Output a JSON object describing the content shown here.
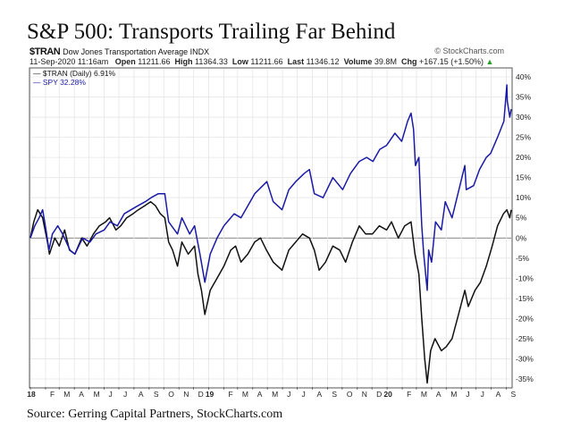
{
  "title": "S&P 500: Transports Trailing Far Behind",
  "source": "Source: Gerring Capital Partners, StockCharts.com",
  "watermark": "© StockCharts.com",
  "header": {
    "symbol": "$TRAN",
    "name": "Dow Jones Transportation Average INDX",
    "datetime": "11-Sep-2020 11:16am",
    "open_label": "Open",
    "open": "11211.66",
    "high_label": "High",
    "high": "11364.33",
    "low_label": "Low",
    "low": "11211.66",
    "last_label": "Last",
    "last": "11346.12",
    "volume_label": "Volume",
    "volume": "39.8M",
    "chg_label": "Chg",
    "chg": "+167.15 (+1.50%)"
  },
  "legend": [
    {
      "text": "— $TRAN (Daily) 6.91%",
      "color": "#111111"
    },
    {
      "text": "— SPY 32.28%",
      "color": "#1a1aa6"
    }
  ],
  "colors": {
    "tran": "#111111",
    "spy": "#1a1aa6",
    "grid": "#e6e6e6",
    "zero": "#777777",
    "up_arrow": "#2a9d2a"
  },
  "chart_data": {
    "type": "line",
    "title": "S&P 500: Transports Trailing Far Behind",
    "x_range": [
      "2018-01-01",
      "2020-09-11"
    ],
    "ylim": [
      -37,
      42
    ],
    "y_ticks": [
      40,
      35,
      30,
      25,
      20,
      15,
      10,
      5,
      0,
      -5,
      -10,
      -15,
      -20,
      -25,
      -30,
      -35
    ],
    "y_tick_labels": [
      "40%",
      "35%",
      "30%",
      "25%",
      "20%",
      "15%",
      "10%",
      "5%",
      "0%",
      "-5%",
      "-10%",
      "-15%",
      "-20%",
      "-25%",
      "-30%",
      "-35%"
    ],
    "x_ticks": [
      {
        "label": "18",
        "date": "2018-01-01",
        "major": true
      },
      {
        "label": "F",
        "date": "2018-02-01"
      },
      {
        "label": "M",
        "date": "2018-03-01"
      },
      {
        "label": "A",
        "date": "2018-04-01"
      },
      {
        "label": "M",
        "date": "2018-05-01"
      },
      {
        "label": "J",
        "date": "2018-06-01"
      },
      {
        "label": "J",
        "date": "2018-07-01"
      },
      {
        "label": "A",
        "date": "2018-08-01"
      },
      {
        "label": "S",
        "date": "2018-09-01"
      },
      {
        "label": "O",
        "date": "2018-10-01"
      },
      {
        "label": "N",
        "date": "2018-11-01"
      },
      {
        "label": "D",
        "date": "2018-12-01"
      },
      {
        "label": "19",
        "date": "2019-01-01",
        "major": true
      },
      {
        "label": "F",
        "date": "2019-02-01"
      },
      {
        "label": "M",
        "date": "2019-03-01"
      },
      {
        "label": "A",
        "date": "2019-04-01"
      },
      {
        "label": "M",
        "date": "2019-05-01"
      },
      {
        "label": "J",
        "date": "2019-06-01"
      },
      {
        "label": "J",
        "date": "2019-07-01"
      },
      {
        "label": "A",
        "date": "2019-08-01"
      },
      {
        "label": "S",
        "date": "2019-09-01"
      },
      {
        "label": "O",
        "date": "2019-10-01"
      },
      {
        "label": "N",
        "date": "2019-11-01"
      },
      {
        "label": "D",
        "date": "2019-12-01"
      },
      {
        "label": "20",
        "date": "2020-01-01",
        "major": true
      },
      {
        "label": "F",
        "date": "2020-02-01"
      },
      {
        "label": "M",
        "date": "2020-03-01"
      },
      {
        "label": "A",
        "date": "2020-04-01"
      },
      {
        "label": "M",
        "date": "2020-05-01"
      },
      {
        "label": "J",
        "date": "2020-06-01"
      },
      {
        "label": "J",
        "date": "2020-07-01"
      },
      {
        "label": "A",
        "date": "2020-08-01"
      },
      {
        "label": "S",
        "date": "2020-09-01"
      }
    ],
    "grid": true,
    "legend_position": "top-left",
    "series": [
      {
        "name": "$TRAN (Daily) 6.91%",
        "color": "#111111",
        "points": [
          [
            "2018-01-01",
            0
          ],
          [
            "2018-01-08",
            4
          ],
          [
            "2018-01-16",
            7
          ],
          [
            "2018-01-26",
            5
          ],
          [
            "2018-02-05",
            -1
          ],
          [
            "2018-02-09",
            -4
          ],
          [
            "2018-02-20",
            0
          ],
          [
            "2018-03-01",
            -2
          ],
          [
            "2018-03-12",
            2
          ],
          [
            "2018-03-22",
            -3
          ],
          [
            "2018-04-02",
            -4
          ],
          [
            "2018-04-16",
            0
          ],
          [
            "2018-04-27",
            -2
          ],
          [
            "2018-05-10",
            1
          ],
          [
            "2018-05-22",
            3
          ],
          [
            "2018-06-04",
            4
          ],
          [
            "2018-06-12",
            5
          ],
          [
            "2018-06-25",
            2
          ],
          [
            "2018-07-05",
            3
          ],
          [
            "2018-07-17",
            5
          ],
          [
            "2018-07-30",
            6
          ],
          [
            "2018-08-10",
            7
          ],
          [
            "2018-08-23",
            8
          ],
          [
            "2018-09-04",
            9
          ],
          [
            "2018-09-14",
            8
          ],
          [
            "2018-09-24",
            6
          ],
          [
            "2018-10-03",
            5
          ],
          [
            "2018-10-11",
            -1
          ],
          [
            "2018-10-19",
            -3
          ],
          [
            "2018-10-29",
            -7
          ],
          [
            "2018-11-07",
            -1
          ],
          [
            "2018-11-20",
            -4
          ],
          [
            "2018-12-03",
            -2
          ],
          [
            "2018-12-10",
            -9
          ],
          [
            "2018-12-17",
            -13
          ],
          [
            "2018-12-24",
            -19
          ],
          [
            "2019-01-04",
            -13
          ],
          [
            "2019-01-18",
            -10
          ],
          [
            "2019-02-01",
            -7
          ],
          [
            "2019-02-15",
            -3
          ],
          [
            "2019-02-25",
            -2
          ],
          [
            "2019-03-08",
            -6
          ],
          [
            "2019-03-22",
            -4
          ],
          [
            "2019-04-05",
            -1
          ],
          [
            "2019-04-17",
            0
          ],
          [
            "2019-04-29",
            -3
          ],
          [
            "2019-05-13",
            -6
          ],
          [
            "2019-05-31",
            -8
          ],
          [
            "2019-06-14",
            -3
          ],
          [
            "2019-06-28",
            -1
          ],
          [
            "2019-07-12",
            1
          ],
          [
            "2019-07-26",
            0
          ],
          [
            "2019-08-05",
            -3
          ],
          [
            "2019-08-15",
            -8
          ],
          [
            "2019-08-28",
            -6
          ],
          [
            "2019-09-12",
            -2
          ],
          [
            "2019-09-26",
            -3
          ],
          [
            "2019-10-08",
            -6
          ],
          [
            "2019-10-22",
            -1
          ],
          [
            "2019-11-05",
            3
          ],
          [
            "2019-11-18",
            1
          ],
          [
            "2019-12-02",
            1
          ],
          [
            "2019-12-16",
            3
          ],
          [
            "2019-12-31",
            2
          ],
          [
            "2020-01-10",
            4
          ],
          [
            "2020-01-24",
            0
          ],
          [
            "2020-02-06",
            3
          ],
          [
            "2020-02-19",
            4
          ],
          [
            "2020-02-27",
            -4
          ],
          [
            "2020-03-06",
            -9
          ],
          [
            "2020-03-12",
            -20
          ],
          [
            "2020-03-18",
            -30
          ],
          [
            "2020-03-23",
            -36
          ],
          [
            "2020-03-30",
            -28
          ],
          [
            "2020-04-08",
            -25
          ],
          [
            "2020-04-21",
            -28
          ],
          [
            "2020-05-01",
            -27
          ],
          [
            "2020-05-13",
            -25
          ],
          [
            "2020-05-26",
            -19
          ],
          [
            "2020-06-08",
            -13
          ],
          [
            "2020-06-15",
            -17
          ],
          [
            "2020-06-29",
            -13
          ],
          [
            "2020-07-10",
            -11
          ],
          [
            "2020-07-22",
            -7
          ],
          [
            "2020-08-03",
            -2
          ],
          [
            "2020-08-14",
            3
          ],
          [
            "2020-08-26",
            6
          ],
          [
            "2020-09-02",
            7
          ],
          [
            "2020-09-08",
            5
          ],
          [
            "2020-09-11",
            7
          ]
        ]
      },
      {
        "name": "SPY 32.28%",
        "color": "#1a1aa6",
        "points": [
          [
            "2018-01-01",
            0
          ],
          [
            "2018-01-10",
            3
          ],
          [
            "2018-01-19",
            5
          ],
          [
            "2018-01-26",
            7
          ],
          [
            "2018-02-02",
            2
          ],
          [
            "2018-02-08",
            -3
          ],
          [
            "2018-02-15",
            1
          ],
          [
            "2018-02-26",
            3
          ],
          [
            "2018-03-08",
            1
          ],
          [
            "2018-03-23",
            -3
          ],
          [
            "2018-04-02",
            -4
          ],
          [
            "2018-04-18",
            0
          ],
          [
            "2018-05-03",
            -1
          ],
          [
            "2018-05-15",
            1
          ],
          [
            "2018-06-01",
            2
          ],
          [
            "2018-06-13",
            4
          ],
          [
            "2018-06-28",
            3
          ],
          [
            "2018-07-12",
            6
          ],
          [
            "2018-07-26",
            7
          ],
          [
            "2018-08-09",
            8
          ],
          [
            "2018-08-24",
            9
          ],
          [
            "2018-09-05",
            10
          ],
          [
            "2018-09-20",
            11
          ],
          [
            "2018-10-03",
            11
          ],
          [
            "2018-10-11",
            4
          ],
          [
            "2018-10-29",
            1
          ],
          [
            "2018-11-07",
            5
          ],
          [
            "2018-11-23",
            1
          ],
          [
            "2018-12-03",
            3
          ],
          [
            "2018-12-14",
            -4
          ],
          [
            "2018-12-24",
            -11
          ],
          [
            "2019-01-04",
            -4
          ],
          [
            "2019-01-18",
            0
          ],
          [
            "2019-02-01",
            3
          ],
          [
            "2019-02-22",
            6
          ],
          [
            "2019-03-08",
            5
          ],
          [
            "2019-03-22",
            8
          ],
          [
            "2019-04-05",
            11
          ],
          [
            "2019-04-30",
            14
          ],
          [
            "2019-05-13",
            9
          ],
          [
            "2019-05-31",
            7
          ],
          [
            "2019-06-14",
            12
          ],
          [
            "2019-06-28",
            14
          ],
          [
            "2019-07-15",
            16
          ],
          [
            "2019-07-26",
            17
          ],
          [
            "2019-08-05",
            11
          ],
          [
            "2019-08-23",
            10
          ],
          [
            "2019-09-12",
            15
          ],
          [
            "2019-10-02",
            12
          ],
          [
            "2019-10-18",
            16
          ],
          [
            "2019-11-05",
            19
          ],
          [
            "2019-11-20",
            20
          ],
          [
            "2019-12-03",
            19
          ],
          [
            "2019-12-17",
            22
          ],
          [
            "2019-12-31",
            23
          ],
          [
            "2020-01-17",
            26
          ],
          [
            "2020-01-31",
            24
          ],
          [
            "2020-02-12",
            29
          ],
          [
            "2020-02-19",
            31
          ],
          [
            "2020-02-24",
            27
          ],
          [
            "2020-02-28",
            18
          ],
          [
            "2020-03-06",
            20
          ],
          [
            "2020-03-09",
            11
          ],
          [
            "2020-03-12",
            3
          ],
          [
            "2020-03-16",
            -4
          ],
          [
            "2020-03-23",
            -13
          ],
          [
            "2020-03-26",
            -3
          ],
          [
            "2020-04-01",
            -6
          ],
          [
            "2020-04-09",
            4
          ],
          [
            "2020-04-21",
            2
          ],
          [
            "2020-04-29",
            9
          ],
          [
            "2020-05-13",
            5
          ],
          [
            "2020-05-27",
            12
          ],
          [
            "2020-06-08",
            18
          ],
          [
            "2020-06-11",
            12
          ],
          [
            "2020-06-26",
            13
          ],
          [
            "2020-07-08",
            17
          ],
          [
            "2020-07-22",
            20
          ],
          [
            "2020-07-31",
            21
          ],
          [
            "2020-08-14",
            25
          ],
          [
            "2020-08-27",
            29
          ],
          [
            "2020-09-02",
            38
          ],
          [
            "2020-09-03",
            34
          ],
          [
            "2020-09-08",
            30
          ],
          [
            "2020-09-11",
            32
          ]
        ]
      }
    ]
  }
}
